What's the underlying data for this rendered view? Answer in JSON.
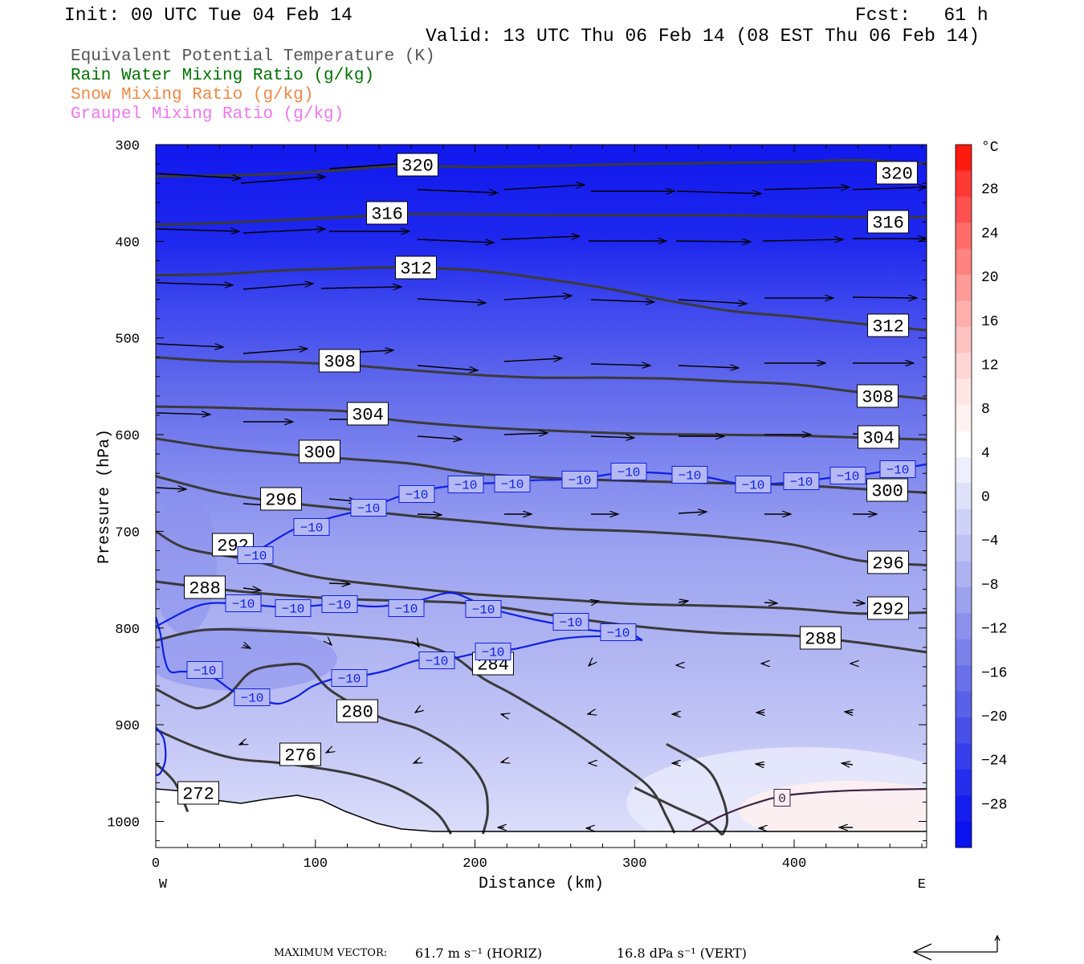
{
  "header": {
    "init": "Init: 00 UTC Tue 04 Feb 14",
    "fcst": "Fcst:   61 h",
    "valid": "Valid: 13 UTC Thu 06 Feb 14 (08 EST Thu 06 Feb 14)"
  },
  "legend": [
    {
      "label": "Equivalent Potential Temperature (K)",
      "color": "#555555"
    },
    {
      "label": "Rain Water Mixing Ratio (g/kg)",
      "color": "#007000"
    },
    {
      "label": "Snow Mixing Ratio (g/kg)",
      "color": "#ee8844"
    },
    {
      "label": "Graupel Mixing Ratio (g/kg)",
      "color": "#ee77ee"
    }
  ],
  "chart_data": {
    "type": "contour",
    "ylabel": "Pressure (hPa)",
    "xlabel": "Distance (km)",
    "x_left_label": "W",
    "x_right_label": "E",
    "xlim": [
      0,
      483
    ],
    "ylim": [
      1027,
      300
    ],
    "x_ticks": [
      0,
      100,
      200,
      300,
      400
    ],
    "y_ticks": [
      300,
      400,
      500,
      600,
      700,
      800,
      900,
      1000
    ],
    "colorbar": {
      "unit": "°C",
      "labels": [
        "28",
        "24",
        "20",
        "16",
        "12",
        "8",
        "4",
        "0",
        "−4",
        "−8",
        "−12",
        "−16",
        "−20",
        "−24",
        "−28"
      ],
      "values": [
        28,
        24,
        20,
        16,
        12,
        8,
        4,
        0,
        -4,
        -8,
        -12,
        -16,
        -20,
        -24,
        -28
      ]
    },
    "theta_e_contours": [
      {
        "label": "320",
        "points": [
          [
            0,
            333
          ],
          [
            40,
            332
          ],
          [
            80,
            330
          ],
          [
            120,
            326
          ],
          [
            150,
            322
          ],
          [
            200,
            323
          ],
          [
            250,
            322
          ],
          [
            300,
            320
          ],
          [
            350,
            319
          ],
          [
            400,
            318
          ],
          [
            440,
            316
          ],
          [
            483,
            320
          ]
        ]
      },
      {
        "label": "316",
        "points": [
          [
            0,
            383
          ],
          [
            40,
            381
          ],
          [
            80,
            378
          ],
          [
            120,
            375
          ],
          [
            150,
            372
          ],
          [
            200,
            372
          ],
          [
            250,
            373
          ],
          [
            300,
            373
          ],
          [
            350,
            373
          ],
          [
            400,
            374
          ],
          [
            440,
            375
          ],
          [
            483,
            375
          ]
        ]
      },
      {
        "label": "312",
        "points": [
          [
            0,
            435
          ],
          [
            40,
            434
          ],
          [
            80,
            430
          ],
          [
            120,
            428
          ],
          [
            150,
            427
          ],
          [
            200,
            430
          ],
          [
            240,
            438
          ],
          [
            280,
            448
          ],
          [
            320,
            461
          ],
          [
            360,
            472
          ],
          [
            400,
            478
          ],
          [
            440,
            485
          ],
          [
            483,
            492
          ]
        ]
      },
      {
        "label": "308",
        "points": [
          [
            0,
            520
          ],
          [
            40,
            524
          ],
          [
            80,
            525
          ],
          [
            120,
            528
          ],
          [
            150,
            532
          ],
          [
            200,
            538
          ],
          [
            240,
            541
          ],
          [
            280,
            541
          ],
          [
            320,
            542
          ],
          [
            360,
            545
          ],
          [
            400,
            548
          ],
          [
            440,
            556
          ],
          [
            483,
            563
          ]
        ]
      },
      {
        "label": "304",
        "points": [
          [
            0,
            571
          ],
          [
            40,
            572
          ],
          [
            80,
            574
          ],
          [
            120,
            576
          ],
          [
            150,
            585
          ],
          [
            200,
            592
          ],
          [
            250,
            596
          ],
          [
            300,
            599
          ],
          [
            350,
            600
          ],
          [
            400,
            601
          ],
          [
            440,
            603
          ],
          [
            483,
            605
          ]
        ]
      },
      {
        "label": "300",
        "points": [
          [
            0,
            604
          ],
          [
            40,
            614
          ],
          [
            80,
            620
          ],
          [
            120,
            625
          ],
          [
            160,
            630
          ],
          [
            200,
            640
          ],
          [
            250,
            645
          ],
          [
            300,
            648
          ],
          [
            350,
            650
          ],
          [
            400,
            652
          ],
          [
            440,
            656
          ],
          [
            483,
            660
          ]
        ]
      },
      {
        "label": "296",
        "points": [
          [
            0,
            643
          ],
          [
            40,
            660
          ],
          [
            80,
            670
          ],
          [
            120,
            677
          ],
          [
            160,
            684
          ],
          [
            200,
            690
          ],
          [
            250,
            697
          ],
          [
            300,
            700
          ],
          [
            350,
            705
          ],
          [
            400,
            714
          ],
          [
            440,
            730
          ],
          [
            483,
            735
          ]
        ]
      },
      {
        "label": "292",
        "points": [
          [
            0,
            700
          ],
          [
            20,
            718
          ],
          [
            60,
            730
          ],
          [
            100,
            747
          ],
          [
            150,
            757
          ],
          [
            200,
            765
          ],
          [
            250,
            770
          ],
          [
            300,
            775
          ],
          [
            350,
            777
          ],
          [
            400,
            780
          ],
          [
            440,
            785
          ],
          [
            483,
            784
          ]
        ]
      },
      {
        "label": "288",
        "points": [
          [
            0,
            752
          ],
          [
            40,
            760
          ],
          [
            80,
            766
          ],
          [
            120,
            770
          ],
          [
            160,
            772
          ],
          [
            200,
            775
          ],
          [
            250,
            787
          ],
          [
            300,
            798
          ],
          [
            350,
            805
          ],
          [
            400,
            808
          ],
          [
            440,
            815
          ],
          [
            483,
            825
          ]
        ]
      },
      {
        "label": "284",
        "points": [
          [
            0,
            813
          ],
          [
            30,
            802
          ],
          [
            70,
            803
          ],
          [
            120,
            808
          ],
          [
            160,
            815
          ],
          [
            185,
            828
          ],
          [
            205,
            852
          ],
          [
            225,
            870
          ],
          [
            260,
            905
          ],
          [
            290,
            940
          ],
          [
            310,
            966
          ],
          [
            320,
            995
          ],
          [
            325,
            1012
          ]
        ]
      },
      {
        "label": "280",
        "points": [
          [
            0,
            863
          ],
          [
            20,
            880
          ],
          [
            30,
            882
          ],
          [
            45,
            870
          ],
          [
            60,
            845
          ],
          [
            80,
            838
          ],
          [
            95,
            840
          ],
          [
            110,
            865
          ],
          [
            140,
            892
          ],
          [
            165,
            905
          ],
          [
            190,
            930
          ],
          [
            205,
            960
          ],
          [
            208,
            990
          ],
          [
            205,
            1013
          ]
        ]
      },
      {
        "label": "276",
        "points": [
          [
            0,
            905
          ],
          [
            25,
            923
          ],
          [
            50,
            935
          ],
          [
            80,
            940
          ],
          [
            120,
            950
          ],
          [
            150,
            965
          ],
          [
            175,
            990
          ],
          [
            185,
            1013
          ]
        ]
      },
      {
        "label": "272",
        "points": [
          [
            0,
            940
          ],
          [
            12,
            960
          ],
          [
            20,
            990
          ]
        ]
      },
      {
        "label": "theta-r1",
        "points": [
          [
            300,
            965
          ],
          [
            325,
            985
          ],
          [
            345,
            1000
          ],
          [
            355,
            1014
          ]
        ]
      },
      {
        "label": "theta-r2",
        "points": [
          [
            320,
            920
          ],
          [
            345,
            945
          ],
          [
            355,
            975
          ],
          [
            358,
            1000
          ],
          [
            355,
            1014
          ]
        ]
      }
    ],
    "temp_minus10_contour": {
      "label": "−10"
    },
    "temp_zero_contour": {
      "label": "0",
      "color": "#402040"
    },
    "max_vector": {
      "label": "MAXIMUM VECTOR:",
      "horiz": "61.7 m s⁻¹ (HORIZ)",
      "vert": "16.8 dPa s⁻¹ (VERT)"
    }
  }
}
